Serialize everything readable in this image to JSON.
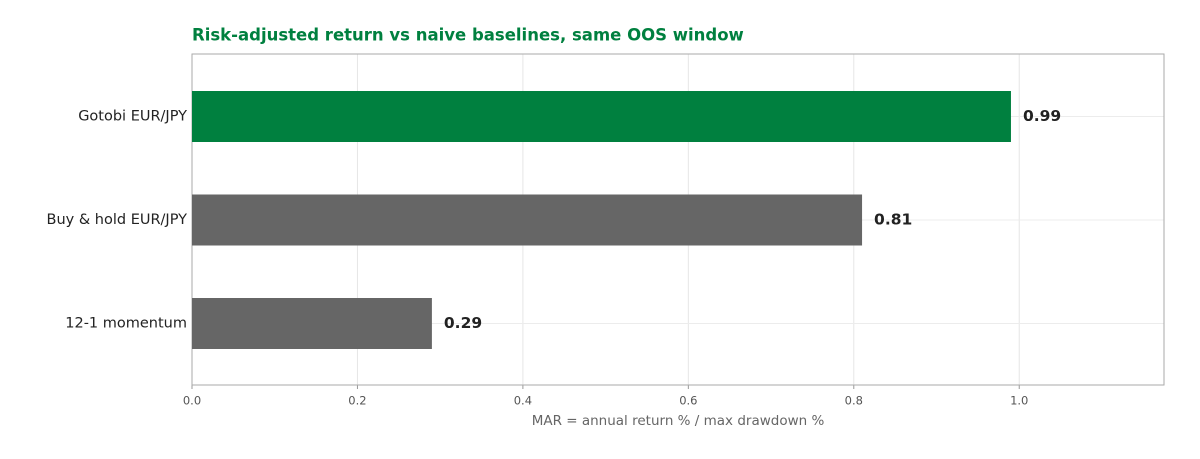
{
  "chart_data": {
    "type": "bar",
    "orientation": "horizontal",
    "title": "Risk-adjusted return vs naive baselines, same OOS window",
    "xlabel": "MAR  =  annual return %  /  max drawdown %",
    "categories": [
      "Gotobi EUR/JPY",
      "Buy & hold EUR/JPY",
      "12-1 momentum"
    ],
    "values": [
      0.99,
      0.81,
      0.29
    ],
    "colors": [
      "#00803f",
      "#666666",
      "#666666"
    ],
    "title_color": "#00803f",
    "xlim": [
      0,
      1.175
    ],
    "xticks": [
      {
        "value": 0,
        "label": "0.0"
      },
      0.2,
      0.4,
      0.6,
      0.8,
      {
        "value": 1,
        "label": "1.0"
      }
    ],
    "grid": true
  }
}
